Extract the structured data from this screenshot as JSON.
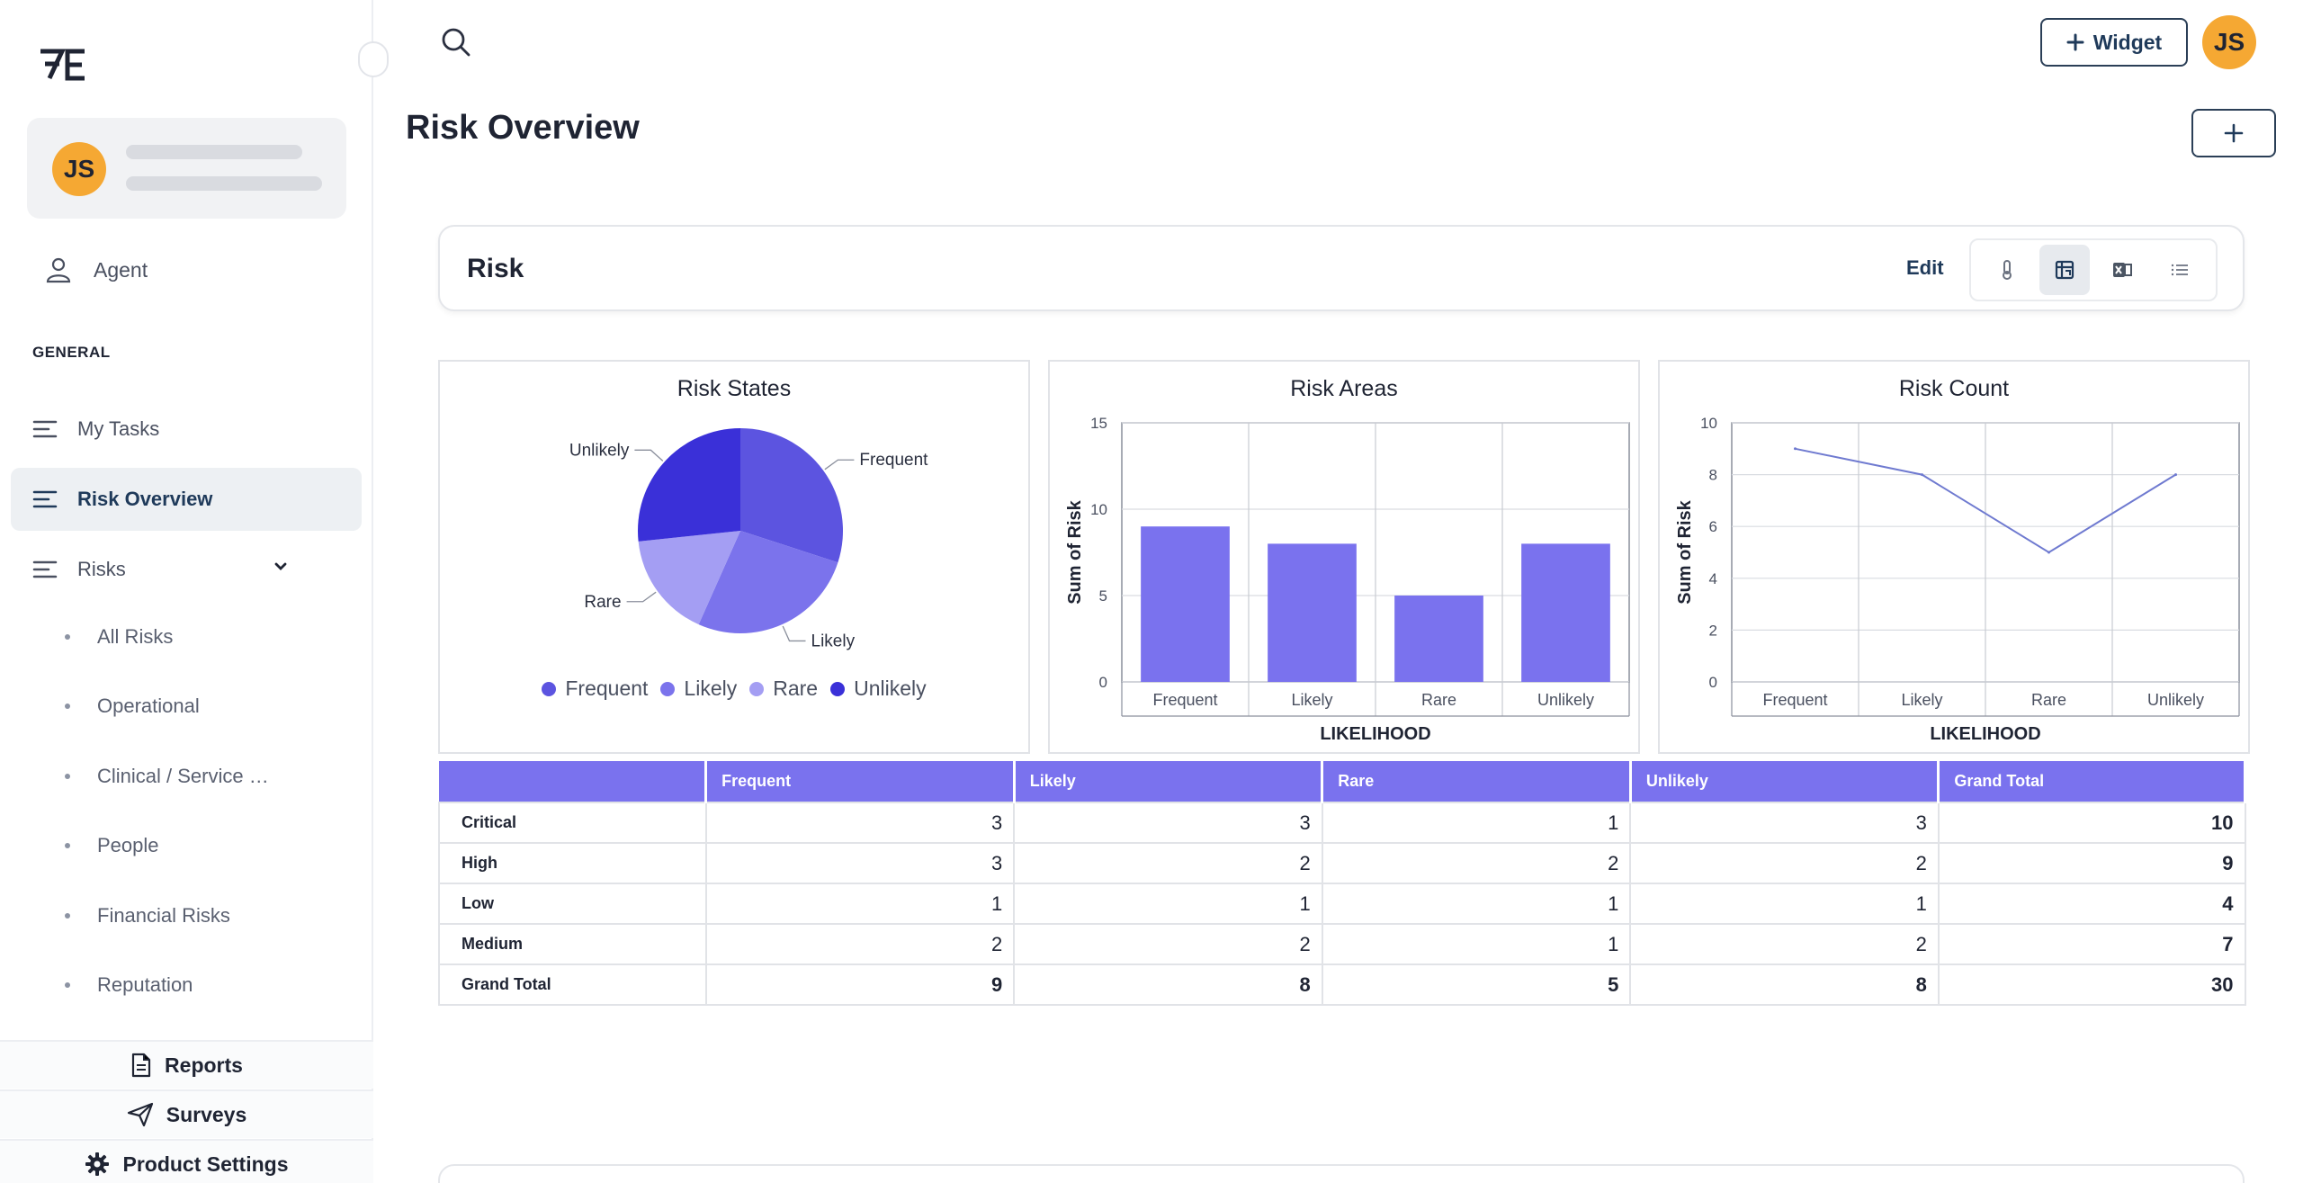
{
  "sidebar": {
    "user_initials": "JS",
    "agent_label": "Agent",
    "general_heading": "GENERAL",
    "nav": {
      "my_tasks": "My Tasks",
      "risk_overview": "Risk Overview",
      "risks": "Risks"
    },
    "sub_items": [
      "All Risks",
      "Operational",
      "Clinical / Service …",
      "People",
      "Financial Risks",
      "Reputation"
    ],
    "footer": {
      "reports": "Reports",
      "surveys": "Surveys",
      "product_settings": "Product Settings"
    }
  },
  "header": {
    "widget_label": "Widget",
    "user_initials": "JS"
  },
  "page": {
    "title": "Risk Overview"
  },
  "risk_card": {
    "title": "Risk",
    "edit_label": "Edit",
    "active_view": "pivot"
  },
  "colors": {
    "accent": "#7a72ee",
    "pie_frequent": "#5c54e0",
    "pie_likely": "#7b73ec",
    "pie_rare": "#a49ef3",
    "pie_unlikely": "#3a30d8",
    "bar": "#7a72ee",
    "line": "#6f7ad0",
    "avatar": "#f5a833"
  },
  "chart_data": [
    {
      "type": "pie",
      "title": "Risk States",
      "categories": [
        "Frequent",
        "Likely",
        "Rare",
        "Unlikely"
      ],
      "values": [
        9,
        8,
        5,
        8
      ],
      "legend": [
        "Frequent",
        "Likely",
        "Rare",
        "Unlikely"
      ],
      "legend_position": "bottom"
    },
    {
      "type": "bar",
      "title": "Risk Areas",
      "categories": [
        "Frequent",
        "Likely",
        "Rare",
        "Unlikely"
      ],
      "values": [
        9,
        8,
        5,
        8
      ],
      "xlabel": "LIKELIHOOD",
      "ylabel": "Sum of Risk",
      "ylim": [
        0,
        15
      ],
      "yticks": [
        0,
        5,
        10,
        15
      ],
      "grid": true
    },
    {
      "type": "line",
      "title": "Risk Count",
      "categories": [
        "Frequent",
        "Likely",
        "Rare",
        "Unlikely"
      ],
      "values": [
        9,
        8,
        5,
        8
      ],
      "xlabel": "LIKELIHOOD",
      "ylabel": "Sum of Risk",
      "ylim": [
        0,
        10
      ],
      "yticks": [
        0,
        2,
        4,
        6,
        8,
        10
      ],
      "grid": true
    },
    {
      "type": "table",
      "columns": [
        "",
        "Frequent",
        "Likely",
        "Rare",
        "Unlikely",
        "Grand Total"
      ],
      "rows": [
        {
          "label": "Critical",
          "values": [
            3,
            3,
            1,
            3,
            10
          ]
        },
        {
          "label": "High",
          "values": [
            3,
            2,
            2,
            2,
            9
          ]
        },
        {
          "label": "Low",
          "values": [
            1,
            1,
            1,
            1,
            4
          ]
        },
        {
          "label": "Medium",
          "values": [
            2,
            2,
            1,
            2,
            7
          ]
        },
        {
          "label": "Grand Total",
          "values": [
            9,
            8,
            5,
            8,
            30
          ]
        }
      ]
    }
  ]
}
